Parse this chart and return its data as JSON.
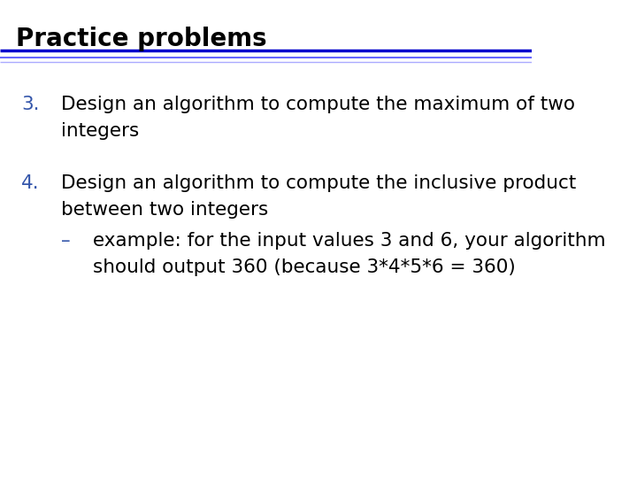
{
  "title": "Practice problems",
  "title_color": "#000000",
  "title_fontsize": 20,
  "background_color": "#ffffff",
  "header_line_color": "#0000cc",
  "header_line_color2": "#6666ff",
  "header_line_color3": "#aaaaff",
  "number_color": "#3355aa",
  "body_color": "#000000",
  "item3_number": "3.",
  "item3_line1": "Design an algorithm to compute the maximum of two",
  "item3_line2": "integers",
  "item4_number": "4.",
  "item4_line1": "Design an algorithm to compute the inclusive product",
  "item4_line2": "between two integers",
  "item4_sub_dash": "–",
  "item4_sub_line1": "example: for the input values 3 and 6, your algorithm",
  "item4_sub_line2": "should output 360 (because 3*4*5*6 = 360)",
  "font_family": "DejaVu Sans",
  "body_fontsize": 15.5
}
